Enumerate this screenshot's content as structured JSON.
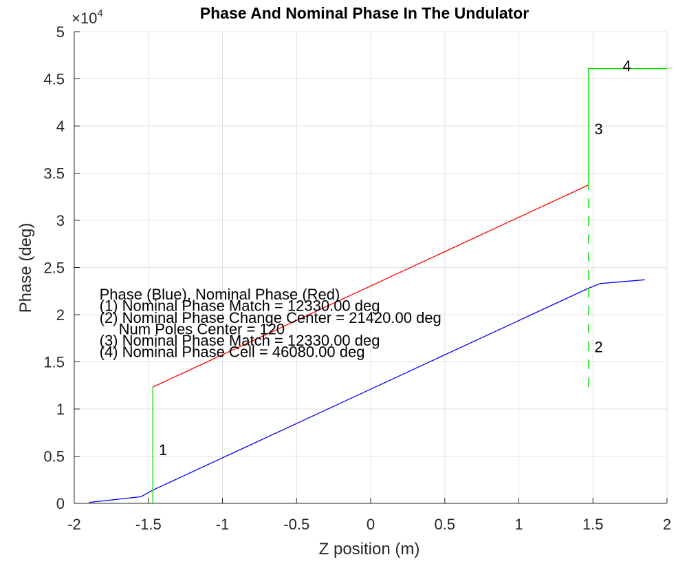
{
  "chart_data": {
    "type": "line",
    "title": "Phase And Nominal Phase In The Undulator",
    "xlabel": "Z position (m)",
    "ylabel": "Phase (deg)",
    "xlim": [
      -2,
      2
    ],
    "ylim": [
      0,
      50000
    ],
    "y_exponent_label": {
      "base": "×10",
      "exponent": "4"
    },
    "grid": true,
    "x_ticks": [
      -2,
      -1.5,
      -1,
      -0.5,
      0,
      0.5,
      1,
      1.5,
      2
    ],
    "x_tick_labels": [
      "-2",
      "-1.5",
      "-1",
      "-0.5",
      "0",
      "0.5",
      "1",
      "1.5",
      "2"
    ],
    "y_ticks": [
      0,
      5000,
      10000,
      15000,
      20000,
      25000,
      30000,
      35000,
      40000,
      45000,
      50000
    ],
    "y_tick_labels": [
      "0",
      "0.5",
      "1",
      "1.5",
      "2",
      "2.5",
      "3",
      "3.5",
      "4",
      "4.5",
      "5"
    ],
    "series": [
      {
        "color": "#0000ff",
        "style": "solid",
        "x": [
          -1.9,
          -1.55,
          -1.47,
          1.47,
          1.55,
          1.85
        ],
        "y": [
          100,
          700,
          1400,
          22800,
          23300,
          23700
        ]
      },
      {
        "color": "#ff0000",
        "style": "solid",
        "x": [
          -1.47,
          1.47
        ],
        "y": [
          12330,
          33750
        ]
      },
      {
        "color": "#00dd00",
        "style": "solid",
        "x": [
          -1.47,
          -1.47
        ],
        "y": [
          0,
          12330
        ]
      },
      {
        "color": "#00dd00",
        "style": "dashed",
        "x": [
          1.47,
          1.47
        ],
        "y": [
          12330,
          33750
        ]
      },
      {
        "color": "#00dd00",
        "style": "solid",
        "x": [
          1.47,
          1.47,
          2.0
        ],
        "y": [
          33750,
          46080,
          46080
        ]
      }
    ],
    "annotations": [
      {
        "text": "Phase (Blue), Nominal Phase (Red)",
        "x": -1.83,
        "y": 22200
      },
      {
        "text": "(1) Nominal Phase Match = 12330.00 deg",
        "x": -1.83,
        "y": 21000
      },
      {
        "text": "(2) Nominal Phase Change Center = 21420.00 deg",
        "x": -1.83,
        "y": 19700
      },
      {
        "text": "Num Poles Center = 120",
        "x": -1.7,
        "y": 18500
      },
      {
        "text": "(3) Nominal Phase Match = 12330.00 deg",
        "x": -1.83,
        "y": 17300
      },
      {
        "text": "(4) Nominal Phase Cell = 46080.00 deg",
        "x": -1.83,
        "y": 16100
      },
      {
        "text": "1",
        "x": -1.43,
        "y": 5700
      },
      {
        "text": "2",
        "x": 1.51,
        "y": 16600
      },
      {
        "text": "3",
        "x": 1.51,
        "y": 39700
      },
      {
        "text": "4",
        "x": 1.7,
        "y": 46400
      }
    ]
  }
}
